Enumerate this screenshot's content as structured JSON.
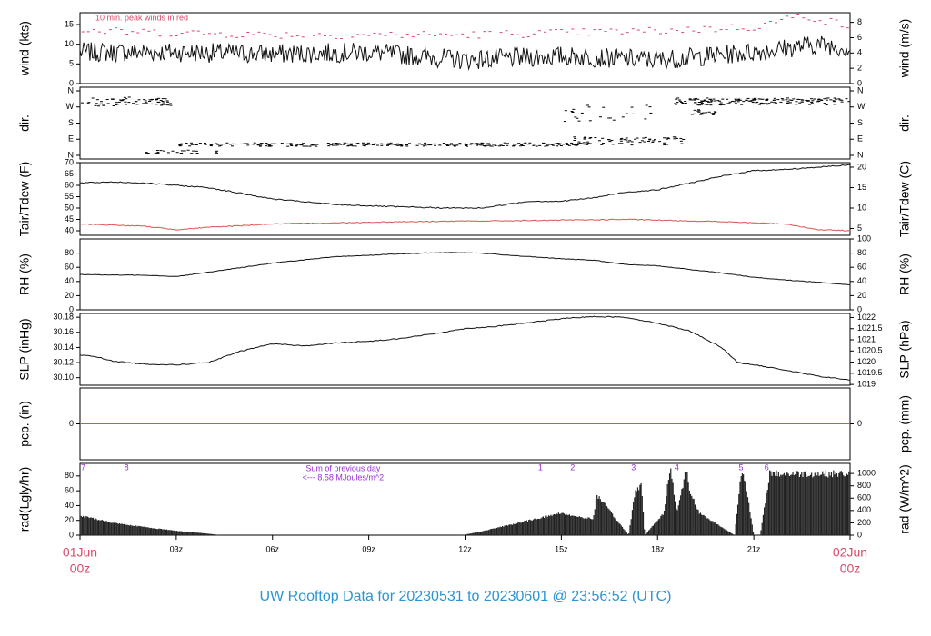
{
  "footer": {
    "title": "UW Rooftop Data for 20230531  to  20230601 @ 23:56:52  (UTC)"
  },
  "colors": {
    "series": "#111111",
    "red": "#d9534f",
    "purple": "#9b2fd6",
    "pink": "#d94a6a",
    "blue": "#2a95d3"
  },
  "chart_data": [
    {
      "type": "line",
      "panel": "wind",
      "ylabel": "wind (kts)",
      "ylabel_right": "wind (m/s)",
      "annotation": "10 min. peak winds in red",
      "yticks": [
        0,
        5,
        10,
        15
      ],
      "yticks_right": [
        0,
        2,
        4,
        6,
        8
      ],
      "ylim": [
        0,
        18
      ],
      "series": [
        {
          "values_hours": [
            0,
            3,
            6,
            9,
            12,
            15,
            18,
            21,
            23,
            24
          ],
          "values": [
            8,
            8,
            7.5,
            8,
            6,
            7,
            6,
            8,
            10,
            9
          ]
        },
        {
          "values_hours": [
            0,
            6,
            12,
            18,
            21,
            22.5,
            24
          ],
          "values": [
            13,
            12,
            12,
            13,
            14,
            17,
            14
          ]
        }
      ]
    },
    {
      "type": "scatter",
      "panel": "dir",
      "ylabel": "dir.",
      "yticks": [
        "N",
        "E",
        "S",
        "W",
        "N"
      ],
      "yticks_right": [
        "N",
        "E",
        "S",
        "W",
        "N"
      ]
    },
    {
      "type": "line",
      "panel": "temp",
      "ylabel": "Tair/Tdew (F)",
      "ylabel_right": "Tair/Tdew (C)",
      "yticks": [
        40,
        45,
        50,
        55,
        60,
        65,
        70
      ],
      "yticks_right": [
        5,
        10,
        15,
        20
      ],
      "ylim": [
        38,
        70
      ],
      "series": [
        {
          "x": [
            0,
            1,
            2,
            3,
            4,
            6,
            8,
            10,
            11.5,
            12.5,
            14,
            15,
            16,
            17,
            18,
            19,
            20,
            21,
            22,
            23,
            24
          ],
          "y": [
            61,
            61.5,
            61,
            60,
            59,
            54,
            51.5,
            50.5,
            50,
            50,
            53,
            53,
            54.5,
            57,
            58,
            61,
            64,
            66.5,
            67,
            68,
            69
          ]
        },
        {
          "x": [
            0,
            2,
            3,
            4,
            6,
            10,
            14,
            17,
            20,
            21,
            22,
            23,
            24
          ],
          "y": [
            43,
            42,
            40.5,
            41.5,
            43,
            44,
            44.5,
            45,
            44,
            43.5,
            43,
            40.5,
            40
          ]
        }
      ]
    },
    {
      "type": "line",
      "panel": "rh",
      "ylabel": "RH (%)",
      "ylabel_right": "RH (%)",
      "yticks": [
        0,
        20,
        40,
        60,
        80
      ],
      "yticks_right": [
        0,
        20,
        40,
        60,
        80,
        100
      ],
      "ylim": [
        0,
        100
      ],
      "series": [
        {
          "x": [
            0,
            1,
            2,
            3,
            4,
            6,
            8,
            10,
            11.5,
            12.5,
            14,
            15,
            16,
            17,
            18,
            19,
            20,
            21,
            22,
            23,
            24
          ],
          "y": [
            50,
            49,
            49,
            47,
            53,
            66,
            75,
            79,
            81,
            80,
            75,
            72,
            70,
            64,
            62,
            57,
            52,
            46,
            42,
            39,
            35
          ]
        }
      ]
    },
    {
      "type": "line",
      "panel": "slp",
      "ylabel": "SLP (inHg)",
      "ylabel_right": "SLP (hPa)",
      "yticks": [
        30.1,
        30.12,
        30.14,
        30.16,
        30.18
      ],
      "yticks_labels": [
        "30.10",
        "30.12",
        "30.14",
        "30.16",
        "30.18"
      ],
      "yticks_right": [
        1019,
        1019.5,
        1020,
        1020.5,
        1021,
        1021.5,
        1022
      ],
      "ylim": [
        30.09,
        30.185
      ],
      "series": [
        {
          "x": [
            0,
            0.5,
            1,
            2,
            3,
            4,
            5,
            6,
            7,
            8,
            9,
            10,
            11,
            12,
            13,
            14,
            15,
            16,
            17,
            18,
            19,
            20,
            20.5,
            21,
            22,
            23,
            24
          ],
          "y": [
            30.13,
            30.128,
            30.122,
            30.118,
            30.117,
            30.12,
            30.135,
            30.145,
            30.142,
            30.146,
            30.148,
            30.152,
            30.158,
            30.165,
            30.168,
            30.173,
            30.178,
            30.181,
            30.18,
            30.172,
            30.162,
            30.14,
            30.12,
            30.117,
            30.11,
            30.102,
            30.097
          ]
        }
      ]
    },
    {
      "type": "line",
      "panel": "pcp",
      "ylabel": "pcp. (in)",
      "ylabel_right": "pcp. (mm)",
      "yticks": [
        0
      ],
      "yticks_right": [
        0
      ],
      "series": [
        {
          "x": [
            0,
            24
          ],
          "y": [
            0,
            0
          ]
        }
      ]
    },
    {
      "type": "area",
      "panel": "rad",
      "ylabel": "rad(Lgly/hr)",
      "ylabel_right": "rad (W/m^2)",
      "yticks": [
        0,
        20,
        40,
        60,
        80
      ],
      "yticks_right": [
        0,
        200,
        400,
        600,
        800,
        1000
      ],
      "ylim": [
        0,
        97
      ],
      "annotation_line1": "Sum of previous day",
      "annotation_line2": "<--- 8.58 MJoules/m^2",
      "top_labels": [
        {
          "hour": 0.1,
          "text": "7"
        },
        {
          "hour": 1.45,
          "text": "8"
        },
        {
          "hour": 14.35,
          "text": "1"
        },
        {
          "hour": 15.35,
          "text": "2"
        },
        {
          "hour": 17.25,
          "text": "3"
        },
        {
          "hour": 18.6,
          "text": "4"
        },
        {
          "hour": 20.6,
          "text": "5"
        },
        {
          "hour": 21.4,
          "text": "6"
        }
      ],
      "x": [
        0,
        0.5,
        1,
        2,
        3,
        4,
        4.4,
        11.9,
        12.5,
        13.5,
        14.5,
        15,
        15.5,
        16,
        16.1,
        17.1,
        17.3,
        17.5,
        17.6,
        18.2,
        18.4,
        18.6,
        18.9,
        19.0,
        19.3,
        20.4,
        20.6,
        20.7,
        21.0,
        21.2,
        21.5,
        21.7
      ],
      "y": [
        26,
        22,
        17,
        11,
        6,
        2,
        0,
        0,
        5,
        15,
        25,
        30,
        25,
        22,
        55,
        0,
        60,
        68,
        0,
        30,
        95,
        30,
        90,
        60,
        30,
        0,
        85,
        80,
        0,
        0,
        85,
        83
      ]
    }
  ],
  "xaxis": {
    "ticks": [
      {
        "hour": 3,
        "text": "03z"
      },
      {
        "hour": 6,
        "text": "06z"
      },
      {
        "hour": 9,
        "text": "09z"
      },
      {
        "hour": 12,
        "text": "12z"
      },
      {
        "hour": 15,
        "text": "15z"
      },
      {
        "hour": 18,
        "text": "18z"
      },
      {
        "hour": 21,
        "text": "21z"
      }
    ],
    "start_line1": "01Jun",
    "start_line2": "00z",
    "end_line1": "02Jun",
    "end_line2": "00z"
  }
}
